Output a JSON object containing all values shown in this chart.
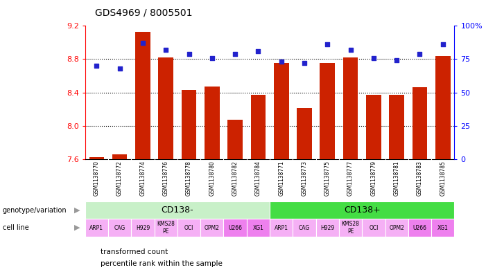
{
  "title": "GDS4969 / 8005501",
  "samples": [
    "GSM1138770",
    "GSM1138772",
    "GSM1138774",
    "GSM1138776",
    "GSM1138778",
    "GSM1138780",
    "GSM1138782",
    "GSM1138784",
    "GSM1138771",
    "GSM1138773",
    "GSM1138775",
    "GSM1138777",
    "GSM1138779",
    "GSM1138781",
    "GSM1138783",
    "GSM1138785"
  ],
  "transformed_count": [
    7.62,
    7.66,
    9.13,
    8.82,
    8.43,
    8.47,
    8.07,
    8.37,
    8.75,
    8.21,
    8.75,
    8.82,
    8.37,
    8.37,
    8.46,
    8.84
  ],
  "percentile_rank": [
    70,
    68,
    87,
    82,
    79,
    76,
    79,
    81,
    73,
    72,
    86,
    82,
    76,
    74,
    79,
    86
  ],
  "ylim_left": [
    7.6,
    9.2
  ],
  "ylim_right": [
    0,
    100
  ],
  "yticks_left": [
    7.6,
    8.0,
    8.4,
    8.8,
    9.2
  ],
  "yticks_right": [
    0,
    25,
    50,
    75,
    100
  ],
  "bar_color": "#cc2200",
  "dot_color": "#2222cc",
  "genotypes": [
    {
      "label": "CD138-",
      "start": 0,
      "end": 8,
      "color": "#c8f0c8"
    },
    {
      "label": "CD138+",
      "start": 8,
      "end": 16,
      "color": "#44dd44"
    }
  ],
  "cell_lines": [
    "ARP1",
    "CAG",
    "H929",
    "KMS28\nPE",
    "OCI",
    "OPM2",
    "U266",
    "XG1",
    "ARP1",
    "CAG",
    "H929",
    "KMS28\nPE",
    "OCI",
    "OPM2",
    "U266",
    "XG1"
  ],
  "cell_line_colors_cd138minus": "#f5b0f5",
  "cell_line_colors_xg1": "#ee80ee",
  "legend_bar_label": "transformed count",
  "legend_dot_label": "percentile rank within the sample",
  "grid_lines": [
    8.0,
    8.4,
    8.8
  ],
  "sample_bg_color": "#c8c8c8"
}
